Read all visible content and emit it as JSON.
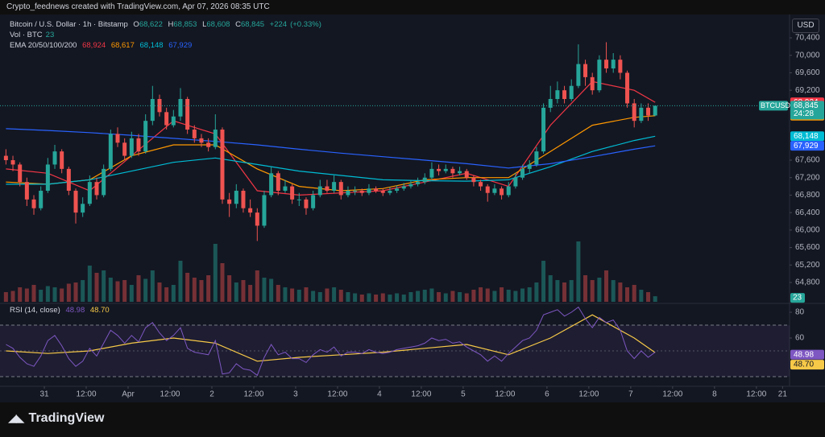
{
  "chart_data": {
    "type": "candlestick",
    "attribution": "Crypto_feednews created with TradingView.com, Apr 07, 2026 08:35 UTC",
    "title": "Bitcoin / U.S. Dollar · 1h · Bitstamp",
    "ohlc": [
      {
        "name": "O",
        "value": 68622,
        "label": "68,622"
      },
      {
        "name": "H",
        "value": 68853,
        "label": "68,853"
      },
      {
        "name": "L",
        "value": 68608,
        "label": "68,608"
      },
      {
        "name": "C",
        "value": 68845,
        "label": "68,845"
      }
    ],
    "change": {
      "value": 224,
      "label": "+224"
    },
    "change_pct": {
      "value": 0.33,
      "label": "(+0.33%)"
    },
    "currency": "USD",
    "symbol": "BTCUSD",
    "countdown": "24:28",
    "brand": "TradingView",
    "up_color": "#26a69a",
    "down_color": "#ef5350",
    "xlim": [
      -12.7,
      213.5
    ],
    "xticks": [
      {
        "value": 0,
        "label": "31"
      },
      {
        "value": 12,
        "label": "12:00"
      },
      {
        "value": 24,
        "label": "Apr"
      },
      {
        "value": 36,
        "label": "12:00"
      },
      {
        "value": 48,
        "label": "2"
      },
      {
        "value": 60,
        "label": "12:00"
      },
      {
        "value": 72,
        "label": "3"
      },
      {
        "value": 84,
        "label": "12:00"
      },
      {
        "value": 96,
        "label": "4"
      },
      {
        "value": 108,
        "label": "12:00"
      },
      {
        "value": 120,
        "label": "5"
      },
      {
        "value": 132,
        "label": "12:00"
      },
      {
        "value": 144,
        "label": "6"
      },
      {
        "value": 156,
        "label": "12:00"
      },
      {
        "value": 168,
        "label": "7"
      },
      {
        "value": 180,
        "label": "12:00"
      },
      {
        "value": 192,
        "label": "8"
      },
      {
        "value": 204,
        "label": "12:00"
      },
      {
        "value": 211.5,
        "label": "21"
      }
    ],
    "ylim": [
      64358,
      70824
    ],
    "yticks": [
      {
        "value": 70400,
        "label": "70,400"
      },
      {
        "value": 70000,
        "label": "70,000"
      },
      {
        "value": 69600,
        "label": "69,600"
      },
      {
        "value": 69200,
        "label": "69,200"
      },
      {
        "value": 67600,
        "label": "67,600"
      },
      {
        "value": 67200,
        "label": "67,200"
      },
      {
        "value": 66800,
        "label": "66,800"
      },
      {
        "value": 66400,
        "label": "66,400"
      },
      {
        "value": 66000,
        "label": "66,000"
      },
      {
        "value": 65600,
        "label": "65,600"
      },
      {
        "value": 65200,
        "label": "65,200"
      },
      {
        "value": 64800,
        "label": "64,800"
      }
    ],
    "x": [
      -11,
      -9,
      -7,
      -5,
      -3,
      -1,
      1,
      3,
      5,
      7,
      9,
      11,
      13,
      15,
      17,
      19,
      21,
      23,
      25,
      27,
      29,
      31,
      33,
      35,
      37,
      39,
      41,
      43,
      45,
      47,
      49,
      51,
      53,
      55,
      57,
      59,
      61,
      63,
      65,
      67,
      69,
      71,
      73,
      75,
      77,
      79,
      81,
      83,
      85,
      87,
      89,
      91,
      93,
      95,
      97,
      99,
      101,
      103,
      105,
      107,
      109,
      111,
      113,
      115,
      117,
      119,
      121,
      123,
      125,
      127,
      129,
      131,
      133,
      135,
      137,
      139,
      141,
      143,
      145,
      147,
      149,
      151,
      153,
      155,
      157,
      159,
      161,
      163,
      165,
      167,
      169,
      171,
      173,
      175
    ],
    "candles": [
      [
        67700,
        67850,
        67500,
        67600
      ],
      [
        67600,
        67700,
        67350,
        67500
      ],
      [
        67500,
        67550,
        67000,
        67100
      ],
      [
        67100,
        67200,
        66550,
        66700
      ],
      [
        66700,
        66800,
        66350,
        66500
      ],
      [
        66500,
        67000,
        66450,
        66900
      ],
      [
        66900,
        67650,
        66850,
        67500
      ],
      [
        67500,
        67950,
        67400,
        67800
      ],
      [
        67800,
        67850,
        67300,
        67400
      ],
      [
        67400,
        67450,
        66800,
        66900
      ],
      [
        66900,
        66950,
        66150,
        66400
      ],
      [
        66400,
        66750,
        66300,
        66600
      ],
      [
        66600,
        67250,
        66550,
        67100
      ],
      [
        67100,
        67200,
        66700,
        66800
      ],
      [
        66800,
        67500,
        66750,
        67400
      ],
      [
        67400,
        68300,
        67350,
        68200
      ],
      [
        68200,
        68350,
        67900,
        68000
      ],
      [
        68000,
        68100,
        67600,
        67700
      ],
      [
        67700,
        68250,
        67650,
        68100
      ],
      [
        68100,
        68200,
        67700,
        67800
      ],
      [
        67800,
        68650,
        67750,
        68500
      ],
      [
        68500,
        69300,
        68400,
        69000
      ],
      [
        69000,
        69100,
        68600,
        68700
      ],
      [
        68700,
        68800,
        68300,
        68400
      ],
      [
        68400,
        68750,
        68350,
        68600
      ],
      [
        68600,
        69250,
        68500,
        69000
      ],
      [
        69000,
        69050,
        68200,
        68300
      ],
      [
        68300,
        68400,
        68000,
        68100
      ],
      [
        68100,
        68200,
        67900,
        68000
      ],
      [
        68000,
        68100,
        67800,
        67900
      ],
      [
        67900,
        68650,
        67850,
        68300
      ],
      [
        68300,
        68350,
        66600,
        66700
      ],
      [
        66700,
        66850,
        66300,
        66600
      ],
      [
        66600,
        67050,
        66500,
        66900
      ],
      [
        66900,
        66950,
        66400,
        66500
      ],
      [
        66500,
        66700,
        66300,
        66400
      ],
      [
        66400,
        66500,
        65750,
        66100
      ],
      [
        66100,
        66900,
        66050,
        66800
      ],
      [
        66800,
        67450,
        66750,
        67300
      ],
      [
        67300,
        67350,
        66800,
        66900
      ],
      [
        66900,
        67150,
        66850,
        67000
      ],
      [
        67000,
        67050,
        66600,
        66700
      ],
      [
        66700,
        66850,
        66550,
        66700
      ],
      [
        66700,
        66750,
        66350,
        66500
      ],
      [
        66500,
        66900,
        66450,
        66800
      ],
      [
        66800,
        67150,
        66750,
        67000
      ],
      [
        67000,
        67150,
        66850,
        66900
      ],
      [
        66900,
        67250,
        66850,
        67100
      ],
      [
        67100,
        67150,
        66700,
        66800
      ],
      [
        66800,
        67000,
        66750,
        66900
      ],
      [
        66900,
        67000,
        66800,
        66900
      ],
      [
        66900,
        66950,
        66780,
        66850
      ],
      [
        66850,
        67050,
        66800,
        66950
      ],
      [
        66950,
        67000,
        66850,
        66900
      ],
      [
        66900,
        66950,
        66780,
        66850
      ],
      [
        66850,
        66980,
        66800,
        66900
      ],
      [
        66900,
        67020,
        66850,
        66950
      ],
      [
        66950,
        67080,
        66900,
        67000
      ],
      [
        67000,
        67150,
        66950,
        67050
      ],
      [
        67050,
        67200,
        67000,
        67100
      ],
      [
        67100,
        67300,
        67050,
        67200
      ],
      [
        67200,
        67550,
        67150,
        67400
      ],
      [
        67400,
        67500,
        67250,
        67350
      ],
      [
        67350,
        67500,
        67300,
        67400
      ],
      [
        67400,
        67450,
        67200,
        67300
      ],
      [
        67300,
        67450,
        67250,
        67350
      ],
      [
        67350,
        67400,
        67150,
        67200
      ],
      [
        67200,
        67250,
        67000,
        67100
      ],
      [
        67100,
        67150,
        66900,
        67000
      ],
      [
        67000,
        67050,
        66650,
        66850
      ],
      [
        66850,
        67050,
        66800,
        66950
      ],
      [
        66950,
        67000,
        66700,
        66800
      ],
      [
        66800,
        67100,
        66750,
        67000
      ],
      [
        67000,
        67300,
        66950,
        67200
      ],
      [
        67200,
        67500,
        67150,
        67400
      ],
      [
        67400,
        67600,
        67300,
        67500
      ],
      [
        67500,
        67900,
        67450,
        67800
      ],
      [
        67800,
        68900,
        67750,
        68800
      ],
      [
        68800,
        69300,
        68700,
        69000
      ],
      [
        69000,
        69400,
        68900,
        69200
      ],
      [
        69200,
        69300,
        68900,
        69000
      ],
      [
        69000,
        69450,
        68950,
        69300
      ],
      [
        69300,
        70250,
        69250,
        69800
      ],
      [
        69800,
        69900,
        69300,
        69500
      ],
      [
        69500,
        69600,
        69100,
        69200
      ],
      [
        69200,
        70000,
        69150,
        69900
      ],
      [
        69900,
        70300,
        69600,
        69700
      ],
      [
        69700,
        70050,
        69600,
        69900
      ],
      [
        69900,
        70000,
        69450,
        69600
      ],
      [
        69600,
        69650,
        68800,
        68900
      ],
      [
        68900,
        69000,
        68350,
        68500
      ],
      [
        68500,
        68900,
        68450,
        68800
      ],
      [
        68800,
        68900,
        68500,
        68622
      ],
      [
        68622,
        68853,
        68608,
        68845
      ]
    ],
    "volume_label": "Vol · BTC",
    "vlim": [
      0,
      300
    ],
    "volume": [
      40,
      45,
      60,
      55,
      70,
      50,
      65,
      60,
      55,
      75,
      80,
      90,
      150,
      120,
      130,
      100,
      85,
      90,
      70,
      110,
      95,
      130,
      80,
      60,
      70,
      170,
      120,
      100,
      90,
      110,
      240,
      160,
      110,
      80,
      90,
      70,
      130,
      100,
      95,
      70,
      60,
      55,
      50,
      60,
      45,
      40,
      55,
      60,
      50,
      40,
      35,
      30,
      35,
      30,
      35,
      30,
      35,
      30,
      40,
      45,
      50,
      55,
      40,
      35,
      45,
      40,
      35,
      50,
      60,
      55,
      45,
      60,
      50,
      45,
      55,
      60,
      80,
      170,
      110,
      90,
      80,
      90,
      250,
      110,
      90,
      100,
      130,
      90,
      80,
      60,
      70,
      50,
      40,
      23
    ],
    "ema": {
      "label": "EMA 20/50/100/200",
      "x": [
        -11,
        1,
        13,
        25,
        37,
        49,
        61,
        73,
        85,
        97,
        109,
        121,
        133,
        145,
        157,
        169,
        175
      ],
      "series": [
        {
          "color": "#f23645",
          "last_label": "68,924",
          "values": [
            67400,
            67300,
            66900,
            67700,
            68500,
            68200,
            66900,
            66800,
            66850,
            66900,
            67100,
            67300,
            67000,
            68400,
            69400,
            69200,
            68924
          ]
        },
        {
          "color": "#ff9800",
          "last_label": "68,617",
          "values": [
            67100,
            67050,
            67150,
            67700,
            67950,
            67950,
            67400,
            67000,
            66900,
            66950,
            67150,
            67200,
            67200,
            67800,
            68400,
            68580,
            68617
          ]
        },
        {
          "color": "#00bcd4",
          "last_label": "68,148",
          "values": [
            67050,
            67050,
            67150,
            67350,
            67550,
            67650,
            67500,
            67350,
            67250,
            67150,
            67130,
            67120,
            67150,
            67450,
            67800,
            68050,
            68148
          ]
        },
        {
          "color": "#2962ff",
          "last_label": "67,929",
          "values": [
            68320,
            68280,
            68230,
            68170,
            68100,
            68030,
            67950,
            67850,
            67760,
            67680,
            67600,
            67520,
            67420,
            67520,
            67680,
            67850,
            67929
          ]
        }
      ]
    },
    "rsi": {
      "label": "RSI (14, close)",
      "color": "#7e57c2",
      "ylim": [
        22.5,
        86.25
      ],
      "yticks": [
        80,
        60
      ],
      "bands": [
        70,
        30
      ],
      "midline": 50,
      "values": [
        55,
        52,
        45,
        40,
        38,
        46,
        58,
        62,
        54,
        44,
        38,
        42,
        52,
        46,
        56,
        66,
        62,
        56,
        62,
        57,
        68,
        72,
        64,
        58,
        62,
        68,
        52,
        49,
        48,
        47,
        58,
        32,
        33,
        40,
        36,
        35,
        31,
        45,
        55,
        47,
        49,
        44,
        44,
        41,
        47,
        51,
        49,
        53,
        46,
        49,
        49,
        48,
        51,
        49,
        48,
        49,
        51,
        52,
        53,
        54,
        56,
        60,
        58,
        59,
        56,
        57,
        53,
        50,
        47,
        42,
        46,
        42,
        48,
        53,
        58,
        60,
        66,
        78,
        80,
        82,
        77,
        80,
        84,
        75,
        68,
        76,
        72,
        74,
        66,
        50,
        44,
        50,
        45,
        48.98
      ],
      "ma": {
        "color": "#f7c948",
        "last_label": "48.70",
        "x": [
          -11,
          1,
          13,
          25,
          37,
          49,
          61,
          73,
          85,
          97,
          109,
          121,
          133,
          145,
          157,
          169,
          175
        ],
        "values": [
          50,
          48,
          50,
          56,
          60,
          56,
          42,
          45,
          47,
          49,
          52,
          55,
          47,
          60,
          78,
          60,
          48.7
        ]
      }
    }
  }
}
